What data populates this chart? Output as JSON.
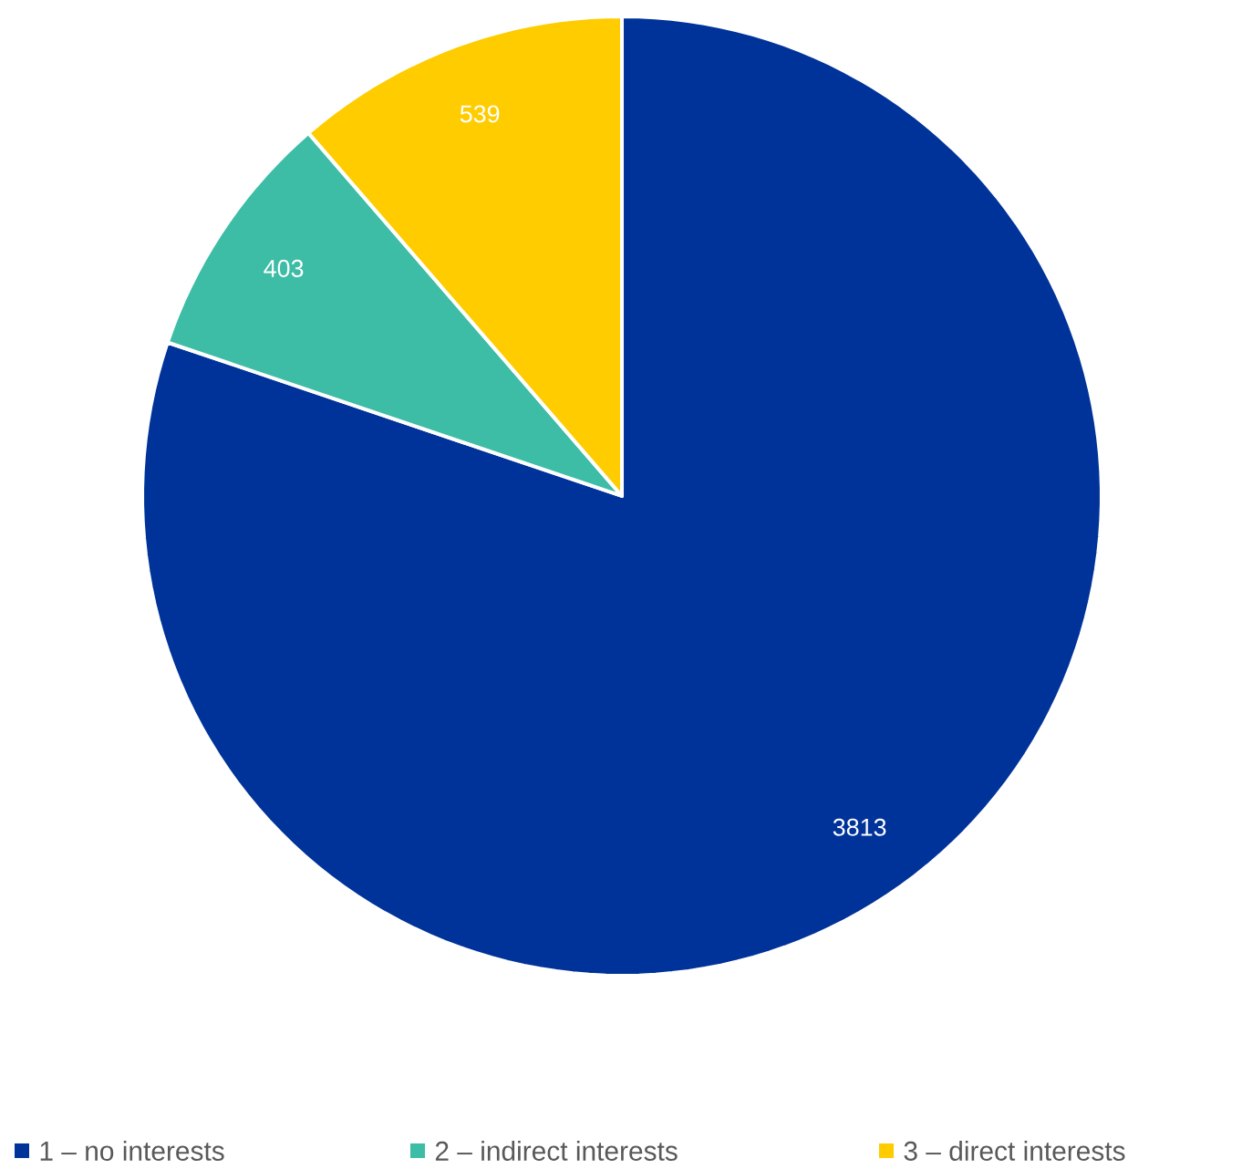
{
  "chart_data": {
    "type": "pie",
    "categories": [
      "1 – no interests",
      "2 – indirect interests",
      "3 – direct interests"
    ],
    "values": [
      3813,
      403,
      539
    ],
    "colors": [
      "#003399",
      "#3dbda5",
      "#ffcc00"
    ],
    "data_labels": true,
    "legend": "bottom"
  }
}
